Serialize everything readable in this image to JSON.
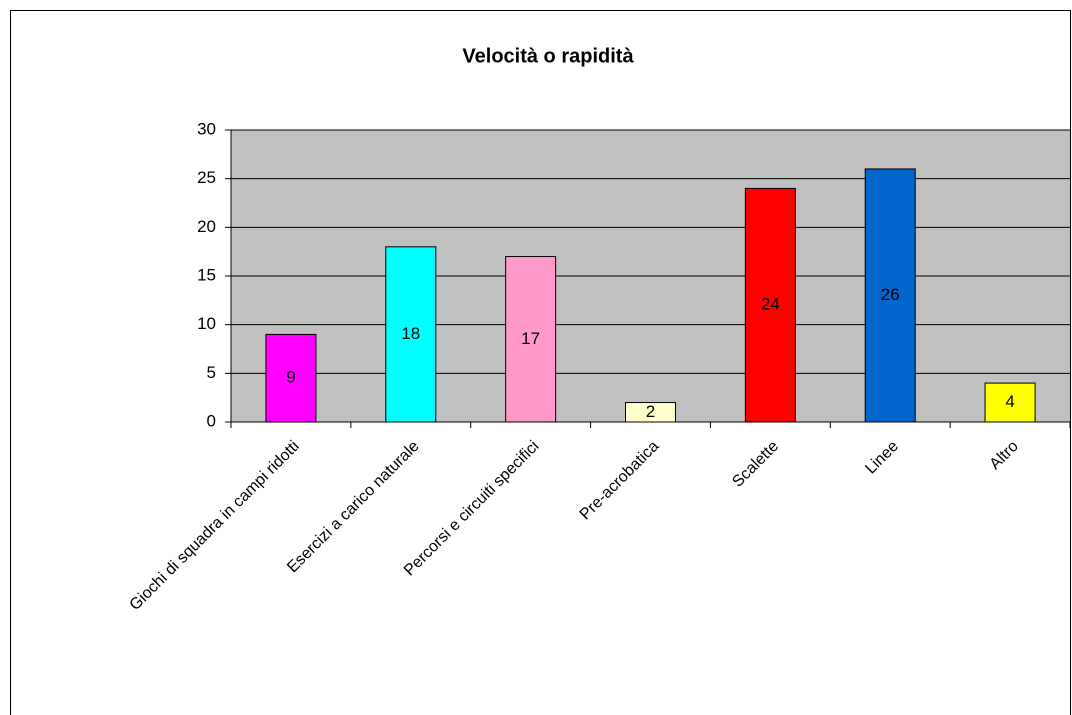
{
  "chart_data": {
    "type": "bar",
    "title": "Velocità o rapidità",
    "categories": [
      "Giochi di squadra in campi ridotti",
      "Esercizi a carico naturale",
      "Percorsi e circuiti specifici",
      "Pre-acrobatica",
      "Scalette",
      "Linee",
      "Altro"
    ],
    "values": [
      9,
      18,
      17,
      2,
      24,
      26,
      4
    ],
    "colors": [
      "#ff00ff",
      "#00ffff",
      "#ff99cc",
      "#ffffcc",
      "#ff0000",
      "#0066cc",
      "#ffff00"
    ],
    "ylim": [
      0,
      30
    ],
    "yticks": [
      0,
      5,
      10,
      15,
      20,
      25,
      30
    ],
    "grid": true
  }
}
